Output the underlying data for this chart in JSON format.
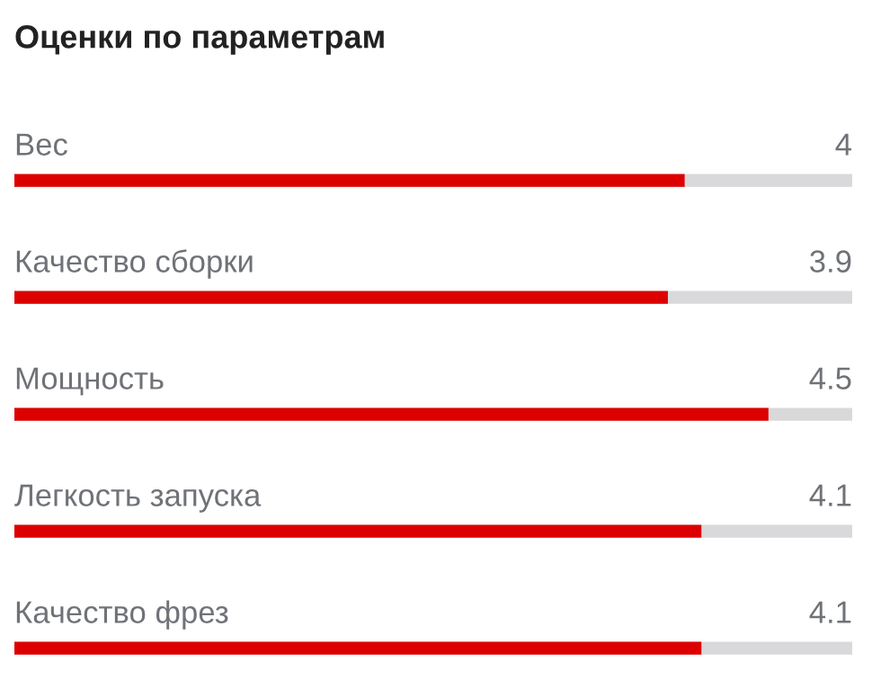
{
  "chart_data": {
    "type": "bar",
    "orientation": "horizontal",
    "title": "Оценки по параметрам",
    "categories": [
      "Вес",
      "Качество сборки",
      "Мощность",
      "Легкость запуска",
      "Качество фрез"
    ],
    "series": [
      {
        "color": "#dd0000",
        "values": [
          4,
          3.9,
          4.5,
          4.1,
          4.1
        ],
        "value_labels": [
          "4",
          "3.9",
          "4.5",
          "4.1",
          "4.1"
        ]
      }
    ],
    "xlim": [
      0,
      5
    ]
  }
}
